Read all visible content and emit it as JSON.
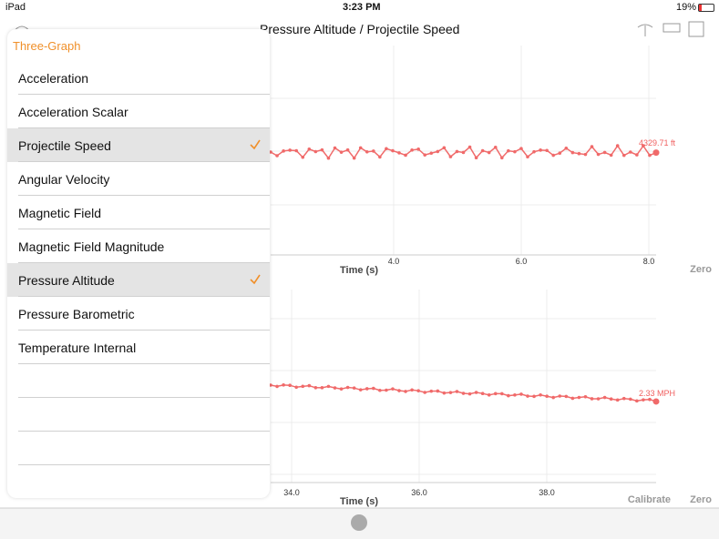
{
  "status_bar": {
    "device": "iPad",
    "time": "3:23 PM",
    "battery": "19%"
  },
  "title": "Pressure Altitude / Projectile Speed",
  "menu": {
    "header": "Three-Graph",
    "items": [
      {
        "label": "Acceleration",
        "selected": false
      },
      {
        "label": "Acceleration Scalar",
        "selected": false
      },
      {
        "label": "Projectile Speed",
        "selected": true
      },
      {
        "label": "Angular Velocity",
        "selected": false
      },
      {
        "label": "Magnetic Field",
        "selected": false
      },
      {
        "label": "Magnetic Field Magnitude",
        "selected": false
      },
      {
        "label": "Pressure Altitude",
        "selected": true
      },
      {
        "label": "Pressure Barometric",
        "selected": false
      },
      {
        "label": "Temperature Internal",
        "selected": false
      }
    ]
  },
  "graphs": [
    {
      "x_ticks": [
        "4.0",
        "6.0",
        "8.0"
      ],
      "x_label": "Time (s)",
      "value_label": "4329.71 ft",
      "buttons": [
        "Zero"
      ]
    },
    {
      "x_ticks": [
        "34.0",
        "36.0",
        "38.0"
      ],
      "x_label": "Time (s)",
      "value_label": "2.33 MPH",
      "buttons": [
        "Calibrate",
        "Zero"
      ]
    }
  ]
}
